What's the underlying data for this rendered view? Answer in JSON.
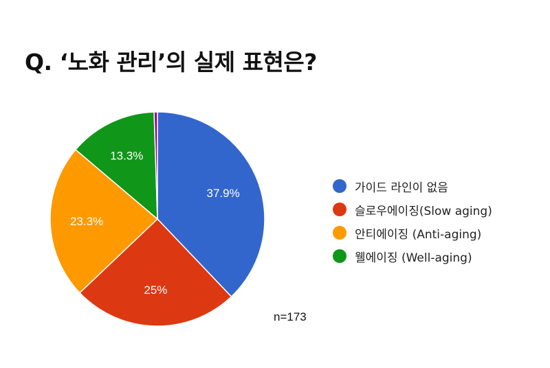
{
  "title": "Q. ‘노화 관리’의 실제 표현은?",
  "note": "n=173",
  "chart_data": {
    "type": "pie",
    "start_angle_deg": 90,
    "direction": "clockwise",
    "legend_position": "right",
    "slices": [
      {
        "name": "가이드 라인이 없음",
        "value": 37.9,
        "label": "37.9%",
        "color": "#3366cc"
      },
      {
        "name": "슬로우에이징(Slow aging)",
        "value": 25.0,
        "label": "25%",
        "color": "#dc3912"
      },
      {
        "name": "안티에이징 (Anti-aging)",
        "value": 23.3,
        "label": "23.3%",
        "color": "#ff9900"
      },
      {
        "name": "웰에이징 (Well-aging)",
        "value": 13.3,
        "label": "13.3%",
        "color": "#109618"
      },
      {
        "name": "",
        "value": 0.5,
        "label": "",
        "color": "#990099"
      }
    ]
  }
}
